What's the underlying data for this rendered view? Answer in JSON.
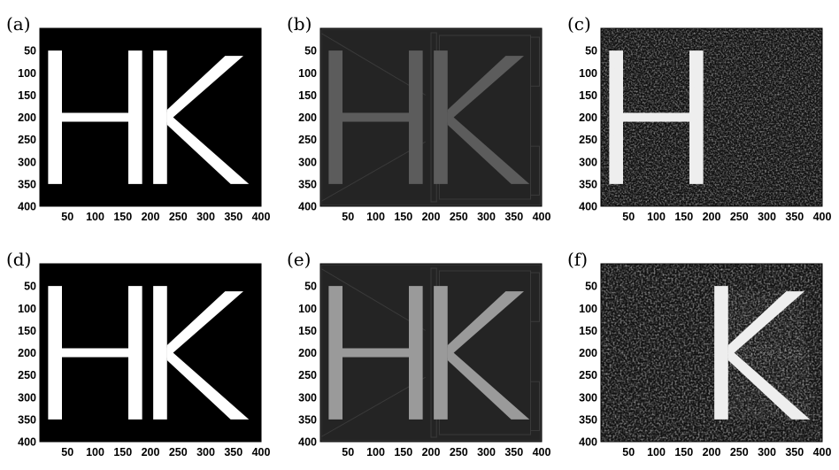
{
  "figure": {
    "panels": [
      {
        "id": "a",
        "label": "(a)",
        "style": "binary",
        "letters": [
          "H",
          "K"
        ]
      },
      {
        "id": "b",
        "label": "(b)",
        "style": "dim-edges",
        "letters": [
          "H",
          "K"
        ]
      },
      {
        "id": "c",
        "label": "(c)",
        "style": "speckle",
        "letters": [
          "H"
        ]
      },
      {
        "id": "d",
        "label": "(d)",
        "style": "binary",
        "letters": [
          "H",
          "K"
        ]
      },
      {
        "id": "e",
        "label": "(e)",
        "style": "bright-edges",
        "letters": [
          "H",
          "K"
        ]
      },
      {
        "id": "f",
        "label": "(f)",
        "style": "speckle",
        "letters": [
          "K"
        ]
      }
    ],
    "y_ticks": [
      "50",
      "100",
      "150",
      "200",
      "250",
      "300",
      "350",
      "400"
    ],
    "x_ticks": [
      "50",
      "100",
      "150",
      "200",
      "250",
      "300",
      "350",
      "400"
    ],
    "colors": {
      "background_dark": "#000000",
      "background_gray": "#242424",
      "letter_white": "#ffffff",
      "letter_gray_dim": "#5c5c5c",
      "letter_gray_bright": "#9a9a9a"
    }
  }
}
